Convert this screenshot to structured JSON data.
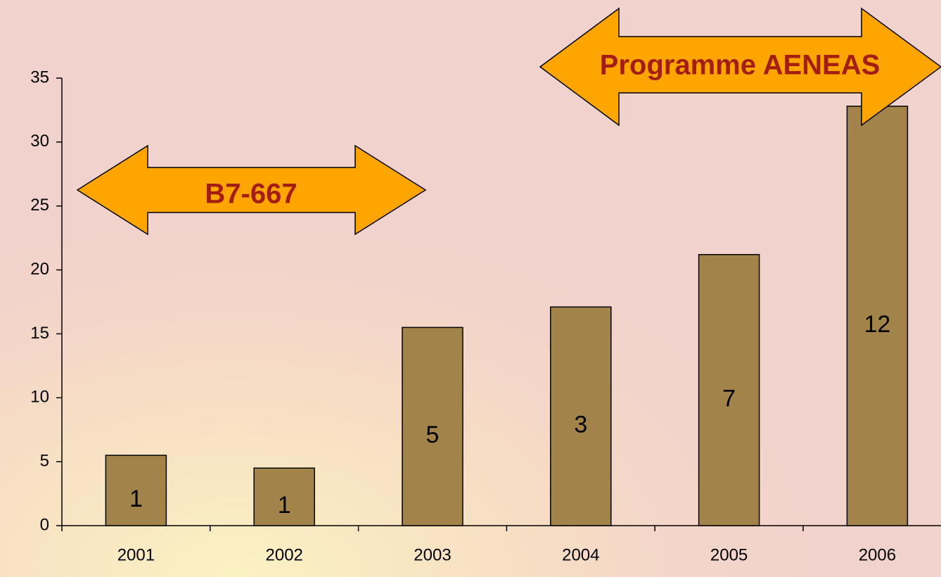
{
  "chart_data": {
    "type": "bar",
    "categories": [
      "2001",
      "2002",
      "2003",
      "2004",
      "2005",
      "2006"
    ],
    "values": [
      5.5,
      4.5,
      15.5,
      17.1,
      21.2,
      32.8
    ],
    "bar_annotations": [
      "1",
      "1",
      "5",
      "3",
      "7",
      "12"
    ],
    "color": "#a2844a",
    "ylim": [
      0,
      35
    ],
    "yticks": [
      0,
      5,
      10,
      15,
      20,
      25,
      30,
      35
    ],
    "grid": false,
    "arrows": [
      {
        "label": "B7-667"
      },
      {
        "label": "Programme AENEAS"
      }
    ]
  }
}
